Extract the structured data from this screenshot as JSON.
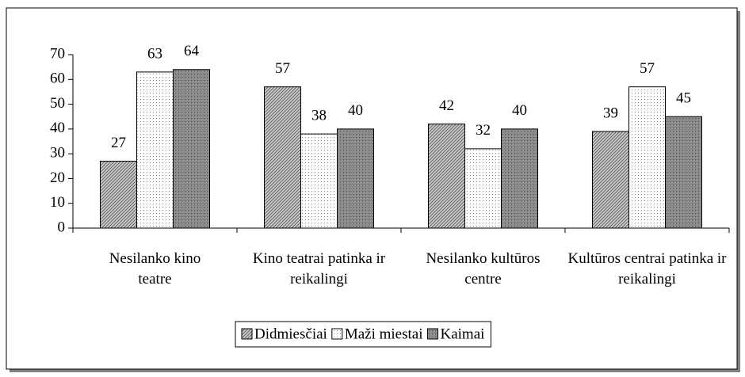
{
  "chart_data": {
    "type": "bar",
    "categories": [
      "Nesilanko kino teatre",
      "Kino teatrai patinka ir reikalingi",
      "Nesilanko kultūros centre",
      "Kultūros centrai patinka ir reikalingi"
    ],
    "series": [
      {
        "name": "Didmiesčiai",
        "color": "#c8c8c8",
        "values": [
          27,
          57,
          42,
          39
        ]
      },
      {
        "name": "Maži miestai",
        "color": "#ffffff",
        "values": [
          63,
          38,
          32,
          57
        ]
      },
      {
        "name": "Kaimai",
        "color": "#8c8c8c",
        "values": [
          64,
          40,
          40,
          45
        ]
      }
    ],
    "ylim": [
      0,
      70
    ],
    "yticks": [
      0,
      10,
      20,
      30,
      40,
      50,
      60,
      70
    ],
    "legend": "bottom"
  }
}
